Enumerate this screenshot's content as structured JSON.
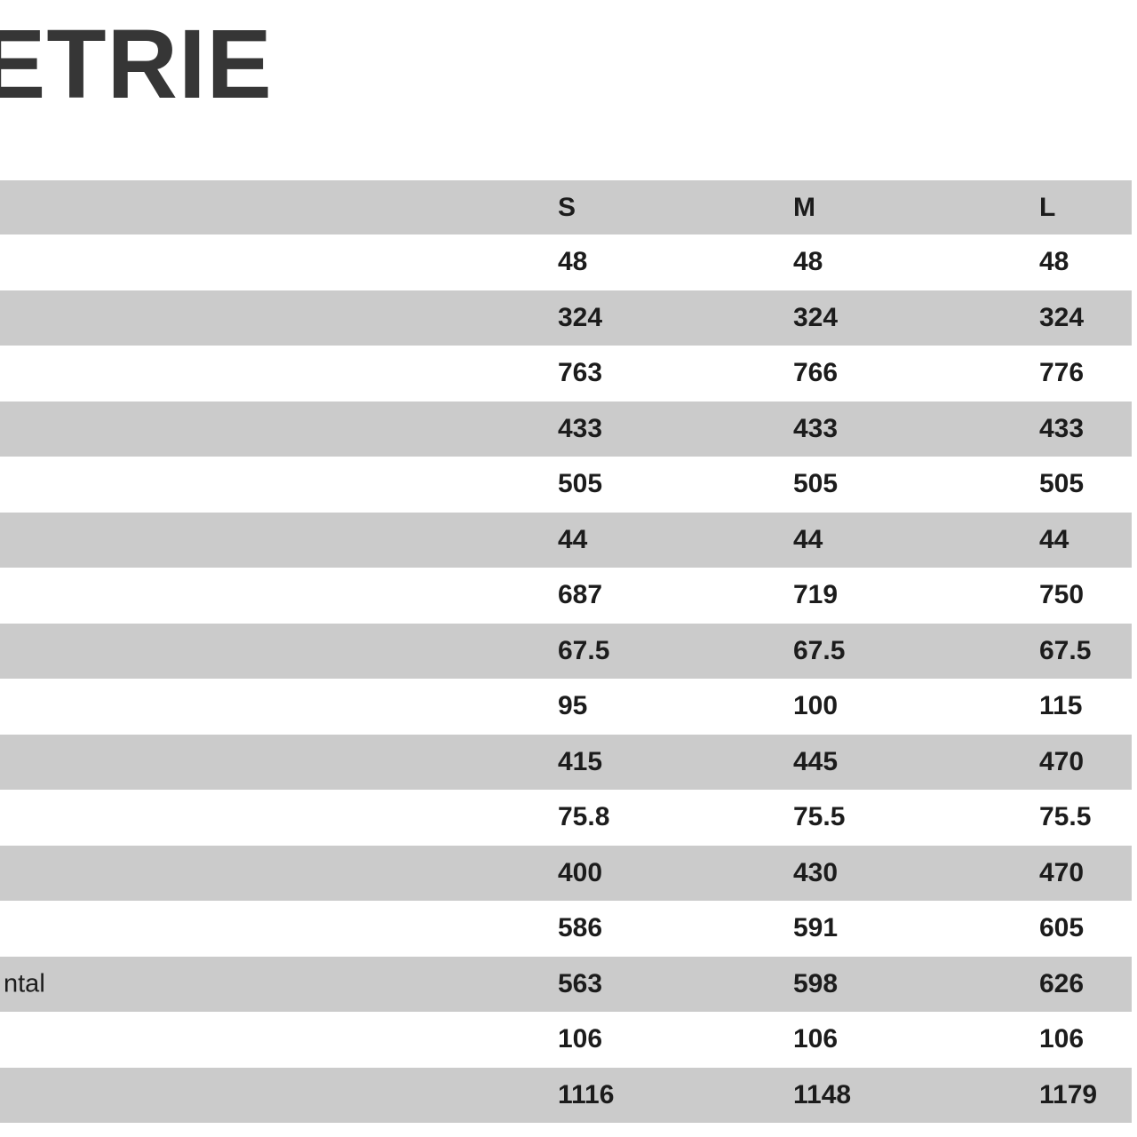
{
  "page": {
    "title_fragment": "ETRIE"
  },
  "table": {
    "sizes": [
      "S",
      "M",
      "L"
    ],
    "rows": [
      {
        "values": [
          "48",
          "48",
          "48"
        ]
      },
      {
        "values": [
          "324",
          "324",
          "324"
        ]
      },
      {
        "values": [
          "763",
          "766",
          "776"
        ]
      },
      {
        "values": [
          "433",
          "433",
          "433"
        ]
      },
      {
        "values": [
          "505",
          "505",
          "505"
        ]
      },
      {
        "values": [
          "44",
          "44",
          "44"
        ]
      },
      {
        "values": [
          "687",
          "719",
          "750"
        ]
      },
      {
        "values": [
          "67.5",
          "67.5",
          "67.5"
        ]
      },
      {
        "values": [
          "95",
          "100",
          "115"
        ]
      },
      {
        "values": [
          "415",
          "445",
          "470"
        ]
      },
      {
        "values": [
          "75.8",
          "75.5",
          "75.5"
        ]
      },
      {
        "values": [
          "400",
          "430",
          "470"
        ]
      },
      {
        "values": [
          "586",
          "591",
          "605"
        ]
      },
      {
        "label": "ntal",
        "values": [
          "563",
          "598",
          "626"
        ]
      },
      {
        "values": [
          "106",
          "106",
          "106"
        ]
      },
      {
        "values": [
          "1116",
          "1148",
          "1179"
        ]
      }
    ]
  },
  "chart_data": {
    "type": "table",
    "title": "ETRIE",
    "columns": [
      "S",
      "M",
      "L"
    ],
    "visible_row_labels": [
      "ntal"
    ],
    "rows": [
      [
        "48",
        "48",
        "48"
      ],
      [
        "324",
        "324",
        "324"
      ],
      [
        "763",
        "766",
        "776"
      ],
      [
        "433",
        "433",
        "433"
      ],
      [
        "505",
        "505",
        "505"
      ],
      [
        "44",
        "44",
        "44"
      ],
      [
        "687",
        "719",
        "750"
      ],
      [
        "67.5",
        "67.5",
        "67.5"
      ],
      [
        "95",
        "100",
        "115"
      ],
      [
        "415",
        "445",
        "470"
      ],
      [
        "75.8",
        "75.5",
        "75.5"
      ],
      [
        "400",
        "430",
        "470"
      ],
      [
        "586",
        "591",
        "605"
      ],
      [
        "563",
        "598",
        "626"
      ],
      [
        "106",
        "106",
        "106"
      ],
      [
        "1116",
        "1148",
        "1179"
      ]
    ]
  },
  "colors": {
    "stripe_gray": "#cbcbcb",
    "text": "#1c1c1c",
    "title": "#363636",
    "background": "#ffffff"
  }
}
